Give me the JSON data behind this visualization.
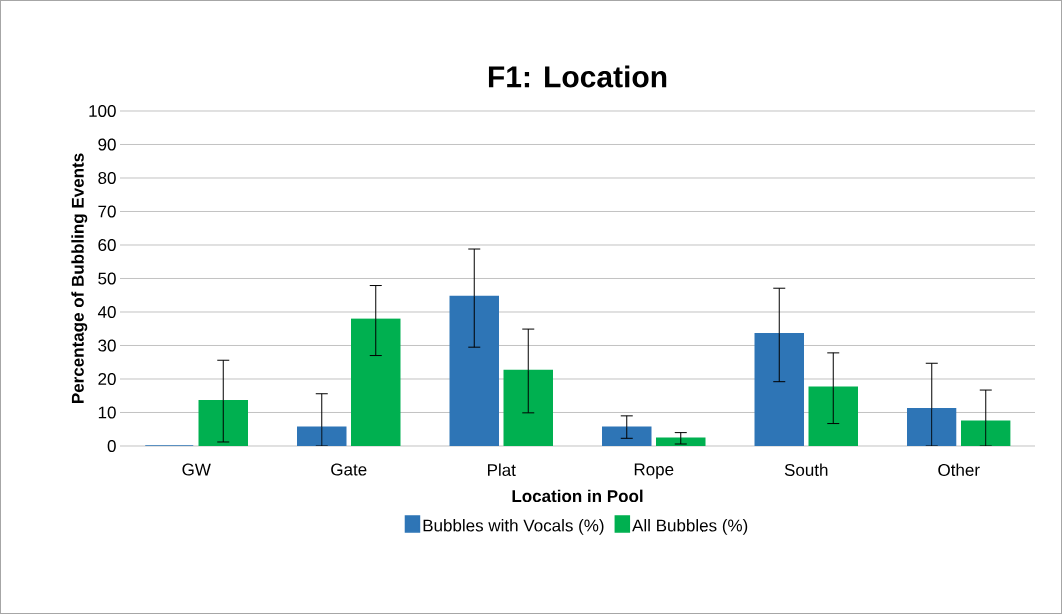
{
  "chart_data": {
    "type": "bar",
    "title": "F1: Location",
    "xlabel": "Location in Pool",
    "ylabel": "Percentage of Bubbling Events",
    "categories": [
      "GW",
      "Gate",
      "Plat",
      "Rope",
      "South",
      "Other"
    ],
    "series": [
      {
        "name": "Bubbles with Vocals (%)",
        "color": "#2e75b6",
        "values": [
          0,
          5.6,
          44.6,
          5.6,
          33.5,
          11.1
        ],
        "errors": [
          null,
          [
            0,
            15.6
          ],
          [
            29.5,
            58.8
          ],
          [
            2.3,
            9.0
          ],
          [
            19.2,
            47.1
          ],
          [
            0,
            24.7
          ]
        ]
      },
      {
        "name": "All Bubbles (%)",
        "color": "#00b050",
        "values": [
          13.5,
          37.8,
          22.5,
          2.3,
          17.5,
          7.4
        ],
        "errors": [
          [
            1.2,
            25.6
          ],
          [
            27,
            47.9
          ],
          [
            9.9,
            34.9
          ],
          [
            0.6,
            4.0
          ],
          [
            6.7,
            27.8
          ],
          [
            0,
            16.7
          ]
        ]
      }
    ],
    "ylim": [
      0,
      100
    ],
    "yticks": [
      0,
      10,
      20,
      30,
      40,
      50,
      60,
      70,
      80,
      90,
      100
    ],
    "grid": "y",
    "legend": "bottom"
  }
}
